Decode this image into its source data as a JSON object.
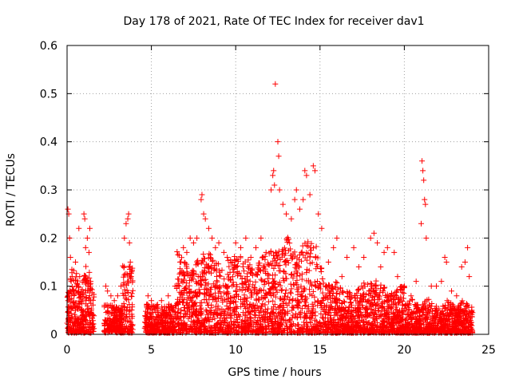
{
  "chart_data": {
    "type": "scatter",
    "title": "Day 178 of 2021, Rate Of TEC Index for receiver dav1",
    "xlabel": "GPS time / hours",
    "ylabel": "ROTI / TECUs",
    "xlim": [
      0,
      25
    ],
    "ylim": [
      0,
      0.6
    ],
    "x_ticks": [
      0,
      5,
      10,
      15,
      20,
      25
    ],
    "y_ticks": [
      0,
      0.1,
      0.2,
      0.3,
      0.4,
      0.5,
      0.6
    ],
    "x_tick_labels": [
      "0",
      "5",
      "10",
      "15",
      "20",
      "25"
    ],
    "y_tick_labels": [
      "0",
      "0.1",
      "0.2",
      "0.3",
      "0.4",
      "0.5",
      "0.6"
    ],
    "grid": true,
    "marker": "+",
    "color": "#ff0000",
    "series": [
      {
        "name": "ROTI",
        "points": [
          [
            0.05,
            0.26
          ],
          [
            0.1,
            0.25
          ],
          [
            0.15,
            0.2
          ],
          [
            0.2,
            0.16
          ],
          [
            0.3,
            0.12
          ],
          [
            0.35,
            0.09
          ],
          [
            0.5,
            0.15
          ],
          [
            0.55,
            0.1
          ],
          [
            0.7,
            0.22
          ],
          [
            0.75,
            0.12
          ],
          [
            1.0,
            0.25
          ],
          [
            1.05,
            0.24
          ],
          [
            1.1,
            0.18
          ],
          [
            1.2,
            0.2
          ],
          [
            1.3,
            0.17
          ],
          [
            1.35,
            0.22
          ],
          [
            1.4,
            0.11
          ],
          [
            2.3,
            0.1
          ],
          [
            2.4,
            0.09
          ],
          [
            2.6,
            0.08
          ],
          [
            2.8,
            0.07
          ],
          [
            3.0,
            0.08
          ],
          [
            3.2,
            0.1
          ],
          [
            3.4,
            0.2
          ],
          [
            3.5,
            0.23
          ],
          [
            3.6,
            0.24
          ],
          [
            3.65,
            0.25
          ],
          [
            3.7,
            0.19
          ],
          [
            3.75,
            0.15
          ],
          [
            3.8,
            0.12
          ],
          [
            4.8,
            0.08
          ],
          [
            5.0,
            0.07
          ],
          [
            5.3,
            0.06
          ],
          [
            5.6,
            0.07
          ],
          [
            6.0,
            0.08
          ],
          [
            6.4,
            0.1
          ],
          [
            6.7,
            0.15
          ],
          [
            6.9,
            0.18
          ],
          [
            7.1,
            0.17
          ],
          [
            7.3,
            0.2
          ],
          [
            7.5,
            0.19
          ],
          [
            7.7,
            0.2
          ],
          [
            7.95,
            0.28
          ],
          [
            8.0,
            0.29
          ],
          [
            8.1,
            0.25
          ],
          [
            8.2,
            0.24
          ],
          [
            8.4,
            0.22
          ],
          [
            8.6,
            0.2
          ],
          [
            8.8,
            0.18
          ],
          [
            9.0,
            0.19
          ],
          [
            9.3,
            0.17
          ],
          [
            9.5,
            0.16
          ],
          [
            9.8,
            0.15
          ],
          [
            10.0,
            0.19
          ],
          [
            10.3,
            0.18
          ],
          [
            10.6,
            0.2
          ],
          [
            10.9,
            0.16
          ],
          [
            11.2,
            0.18
          ],
          [
            11.5,
            0.2
          ],
          [
            11.8,
            0.17
          ],
          [
            12.1,
            0.3
          ],
          [
            12.2,
            0.33
          ],
          [
            12.25,
            0.34
          ],
          [
            12.3,
            0.31
          ],
          [
            12.35,
            0.52
          ],
          [
            12.5,
            0.4
          ],
          [
            12.55,
            0.37
          ],
          [
            12.6,
            0.3
          ],
          [
            12.8,
            0.27
          ],
          [
            13.0,
            0.25
          ],
          [
            13.3,
            0.24
          ],
          [
            13.5,
            0.28
          ],
          [
            13.6,
            0.3
          ],
          [
            13.8,
            0.26
          ],
          [
            14.0,
            0.28
          ],
          [
            14.1,
            0.34
          ],
          [
            14.2,
            0.33
          ],
          [
            14.4,
            0.29
          ],
          [
            14.6,
            0.35
          ],
          [
            14.7,
            0.34
          ],
          [
            14.9,
            0.25
          ],
          [
            15.1,
            0.22
          ],
          [
            15.5,
            0.15
          ],
          [
            15.8,
            0.18
          ],
          [
            16.0,
            0.2
          ],
          [
            16.3,
            0.12
          ],
          [
            16.6,
            0.16
          ],
          [
            17.0,
            0.18
          ],
          [
            17.3,
            0.14
          ],
          [
            17.6,
            0.16
          ],
          [
            18.0,
            0.2
          ],
          [
            18.2,
            0.21
          ],
          [
            18.4,
            0.19
          ],
          [
            18.6,
            0.14
          ],
          [
            18.8,
            0.17
          ],
          [
            19.0,
            0.18
          ],
          [
            19.4,
            0.17
          ],
          [
            19.6,
            0.12
          ],
          [
            20.0,
            0.1
          ],
          [
            20.4,
            0.08
          ],
          [
            20.7,
            0.11
          ],
          [
            21.0,
            0.23
          ],
          [
            21.05,
            0.36
          ],
          [
            21.1,
            0.34
          ],
          [
            21.15,
            0.32
          ],
          [
            21.2,
            0.28
          ],
          [
            21.25,
            0.27
          ],
          [
            21.3,
            0.2
          ],
          [
            21.6,
            0.1
          ],
          [
            21.9,
            0.1
          ],
          [
            22.2,
            0.11
          ],
          [
            22.4,
            0.16
          ],
          [
            22.5,
            0.15
          ],
          [
            22.8,
            0.09
          ],
          [
            23.1,
            0.08
          ],
          [
            23.4,
            0.14
          ],
          [
            23.6,
            0.15
          ],
          [
            23.75,
            0.18
          ],
          [
            23.85,
            0.12
          ],
          [
            24.0,
            0.05
          ]
        ]
      }
    ]
  }
}
